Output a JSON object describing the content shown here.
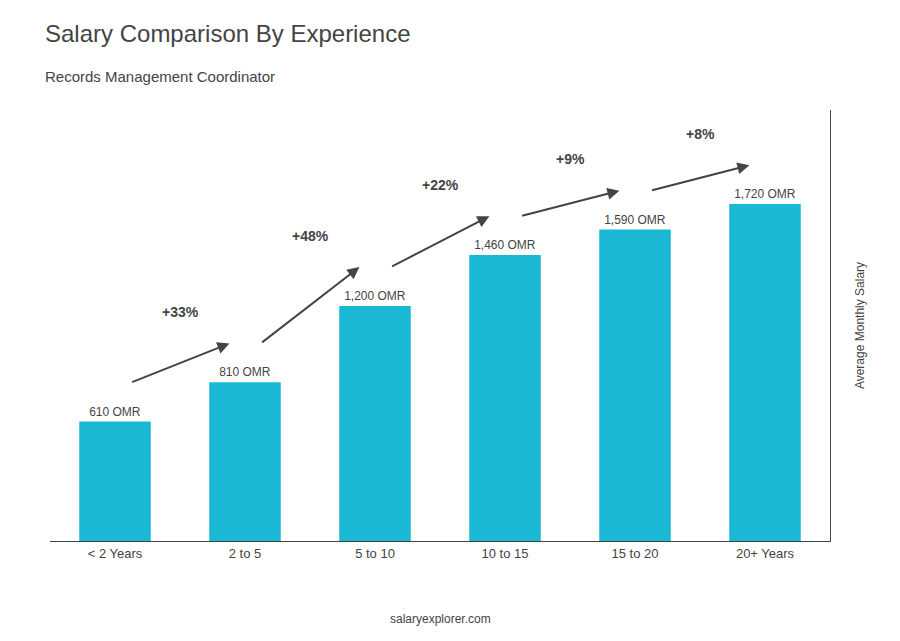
{
  "chart_data": {
    "type": "bar",
    "title": "Salary Comparison By Experience",
    "subtitle": "Records Management Coordinator",
    "categories": [
      "< 2 Years",
      "2 to 5",
      "5 to 10",
      "10 to 15",
      "15 to 20",
      "20+ Years"
    ],
    "values": [
      610,
      810,
      1200,
      1460,
      1590,
      1720
    ],
    "value_labels": [
      "610 OMR",
      "810 OMR",
      "1,200 OMR",
      "1,460 OMR",
      "1,590 OMR",
      "1,720 OMR"
    ],
    "data_labels": true,
    "color": "#1ab8d4",
    "ylabel": "Average Monthly Salary",
    "ylim": [
      0,
      2200
    ],
    "tick_labels": "x",
    "grid": false,
    "annotations": [
      {
        "text": "+33%",
        "from": "< 2 Years",
        "to": "2 to 5"
      },
      {
        "text": "+48%",
        "from": "2 to 5",
        "to": "5 to 10"
      },
      {
        "text": "+22%",
        "from": "5 to 10",
        "to": "10 to 15"
      },
      {
        "text": "+9%",
        "from": "10 to 15",
        "to": "15 to 20"
      },
      {
        "text": "+8%",
        "from": "15 to 20",
        "to": "20+ Years"
      },
      {
        "text": "salaryexplorer.com"
      }
    ]
  }
}
